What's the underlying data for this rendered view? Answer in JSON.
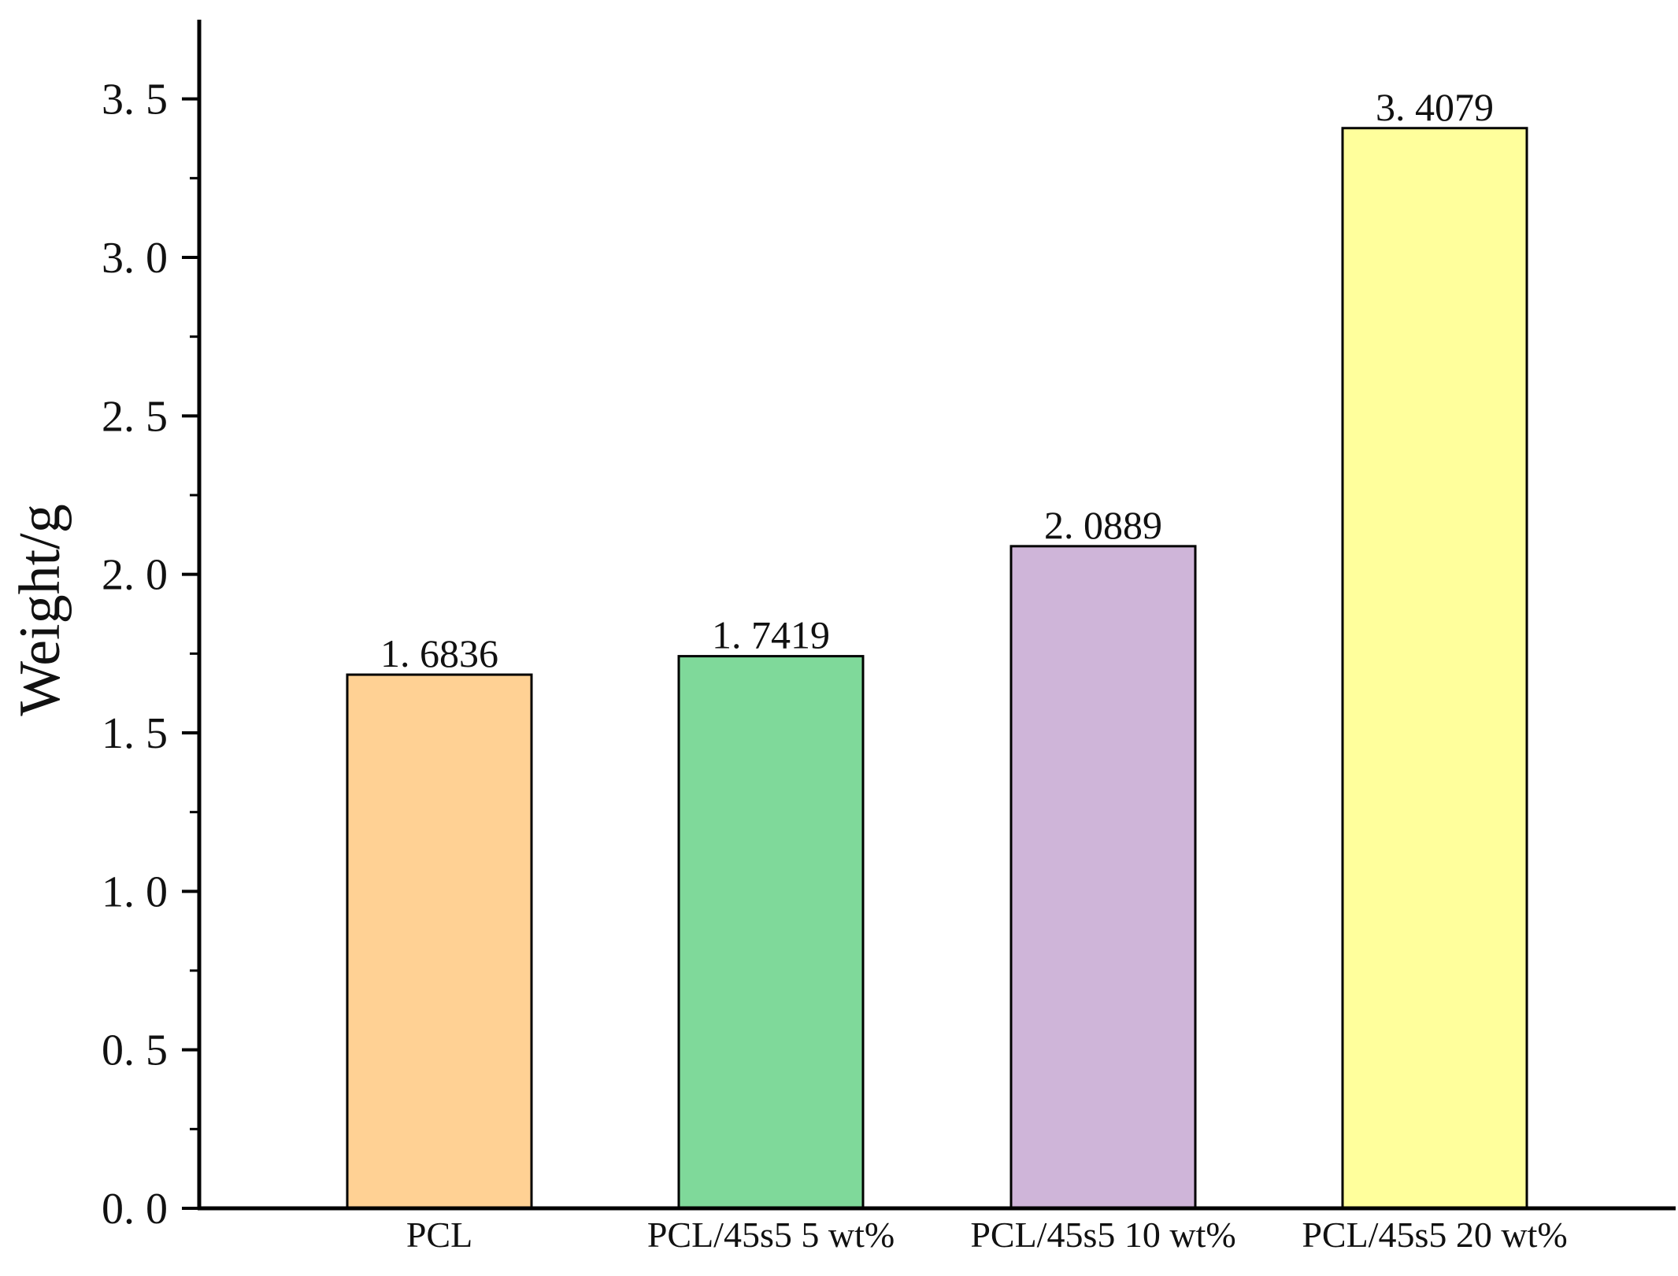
{
  "chart_data": {
    "type": "bar",
    "title": "",
    "xlabel": "",
    "ylabel": "Weight/g",
    "categories": [
      "PCL",
      "PCL/45s5 5 wt%",
      "PCL/45s5 10 wt%",
      "PCL/45s5 20 wt%"
    ],
    "values": [
      1.6836,
      1.7419,
      2.0889,
      3.4079
    ],
    "value_labels": [
      "1. 6836",
      "1. 7419",
      "2. 0889",
      "3. 4079"
    ],
    "colors": [
      "#FFD194",
      "#7FD99A",
      "#CFB5D9",
      "#FFFF9C"
    ],
    "ylim": [
      0,
      3.75
    ],
    "yticks": [
      0,
      0.5,
      1.0,
      1.5,
      2.0,
      2.5,
      3.0,
      3.5
    ],
    "ytick_labels": [
      "0. 0",
      "0. 5",
      "1. 0",
      "1. 5",
      "2. 0",
      "2. 5",
      "3. 0",
      "3. 5"
    ],
    "grid": false,
    "legend": "none"
  }
}
